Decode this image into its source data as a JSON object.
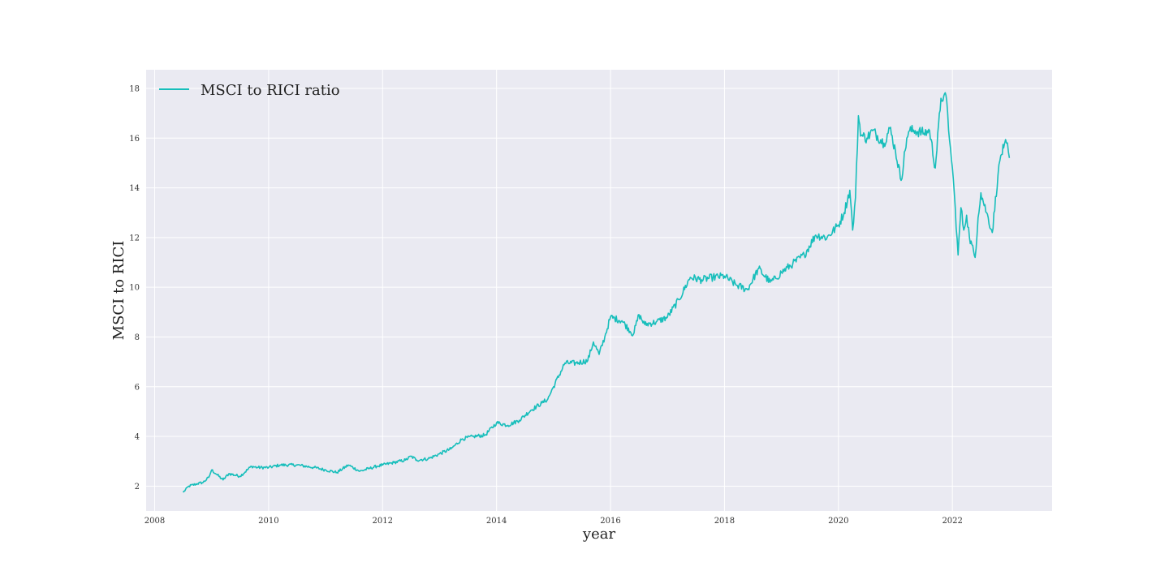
{
  "chart_data": {
    "type": "line",
    "title": "",
    "xlabel": "year",
    "ylabel": "MSCI to RICI",
    "xlim": [
      2007.85,
      2023.75
    ],
    "ylim": [
      1.0,
      18.75
    ],
    "xticks": [
      2008,
      2010,
      2012,
      2014,
      2016,
      2018,
      2020,
      2022
    ],
    "xtick_labels": [
      "2008",
      "2010",
      "2012",
      "2014",
      "2016",
      "2018",
      "2020",
      "2022"
    ],
    "yticks": [
      2,
      4,
      6,
      8,
      10,
      12,
      14,
      16,
      18
    ],
    "ytick_labels": [
      "2",
      "4",
      "6",
      "8",
      "10",
      "12",
      "14",
      "16",
      "18"
    ],
    "grid": true,
    "legend_position": "top-left",
    "colors": {
      "background": "#eaeaf2",
      "grid": "#ffffff",
      "line": "#17bebb"
    },
    "series": [
      {
        "name": "MSCI to RICI ratio",
        "x": [
          2008.5,
          2008.6,
          2008.75,
          2008.85,
          2008.95,
          2009.0,
          2009.1,
          2009.2,
          2009.3,
          2009.5,
          2009.7,
          2009.8,
          2010.0,
          2010.2,
          2010.5,
          2010.8,
          2011.0,
          2011.2,
          2011.4,
          2011.6,
          2011.75,
          2011.9,
          2012.0,
          2012.2,
          2012.4,
          2012.5,
          2012.6,
          2012.8,
          2013.0,
          2013.2,
          2013.4,
          2013.6,
          2013.8,
          2014.0,
          2014.2,
          2014.4,
          2014.6,
          2014.8,
          2014.9,
          2015.0,
          2015.2,
          2015.4,
          2015.6,
          2015.7,
          2015.8,
          2015.9,
          2016.0,
          2016.2,
          2016.4,
          2016.5,
          2016.6,
          2016.8,
          2017.0,
          2017.2,
          2017.4,
          2017.6,
          2017.8,
          2018.0,
          2018.2,
          2018.4,
          2018.6,
          2018.8,
          2018.9,
          2019.0,
          2019.2,
          2019.4,
          2019.6,
          2019.8,
          2020.0,
          2020.1,
          2020.2,
          2020.25,
          2020.3,
          2020.35,
          2020.4,
          2020.5,
          2020.6,
          2020.8,
          2020.9,
          2021.0,
          2021.1,
          2021.2,
          2021.25,
          2021.35,
          2021.5,
          2021.6,
          2021.7,
          2021.8,
          2021.85,
          2021.9,
          2021.95,
          2022.0,
          2022.05,
          2022.1,
          2022.15,
          2022.2,
          2022.25,
          2022.3,
          2022.4,
          2022.45,
          2022.5,
          2022.6,
          2022.7,
          2022.8,
          2022.85,
          2022.9,
          2022.95,
          2023.0
        ],
        "values": [
          1.75,
          2.0,
          2.1,
          2.15,
          2.35,
          2.65,
          2.45,
          2.25,
          2.5,
          2.4,
          2.8,
          2.75,
          2.75,
          2.85,
          2.85,
          2.75,
          2.65,
          2.55,
          2.85,
          2.6,
          2.7,
          2.8,
          2.85,
          2.95,
          3.05,
          3.2,
          3.05,
          3.1,
          3.3,
          3.5,
          3.9,
          4.0,
          4.05,
          4.55,
          4.45,
          4.65,
          5.05,
          5.35,
          5.5,
          6.0,
          6.95,
          6.95,
          7.05,
          7.8,
          7.3,
          8.0,
          8.8,
          8.65,
          8.1,
          8.9,
          8.5,
          8.6,
          8.8,
          9.5,
          10.4,
          10.3,
          10.4,
          10.45,
          10.1,
          9.9,
          10.75,
          10.2,
          10.35,
          10.6,
          10.95,
          11.3,
          12.1,
          12.0,
          12.5,
          13.0,
          13.9,
          12.3,
          13.6,
          16.9,
          16.1,
          16.0,
          16.3,
          15.8,
          16.4,
          15.5,
          14.3,
          16.0,
          16.3,
          16.3,
          16.2,
          16.3,
          14.8,
          17.6,
          17.7,
          17.5,
          15.9,
          14.8,
          13.2,
          11.3,
          13.2,
          12.3,
          12.9,
          12.0,
          11.2,
          12.8,
          13.8,
          13.0,
          12.2,
          14.5,
          15.3,
          15.6,
          15.8,
          15.2
        ]
      }
    ]
  }
}
